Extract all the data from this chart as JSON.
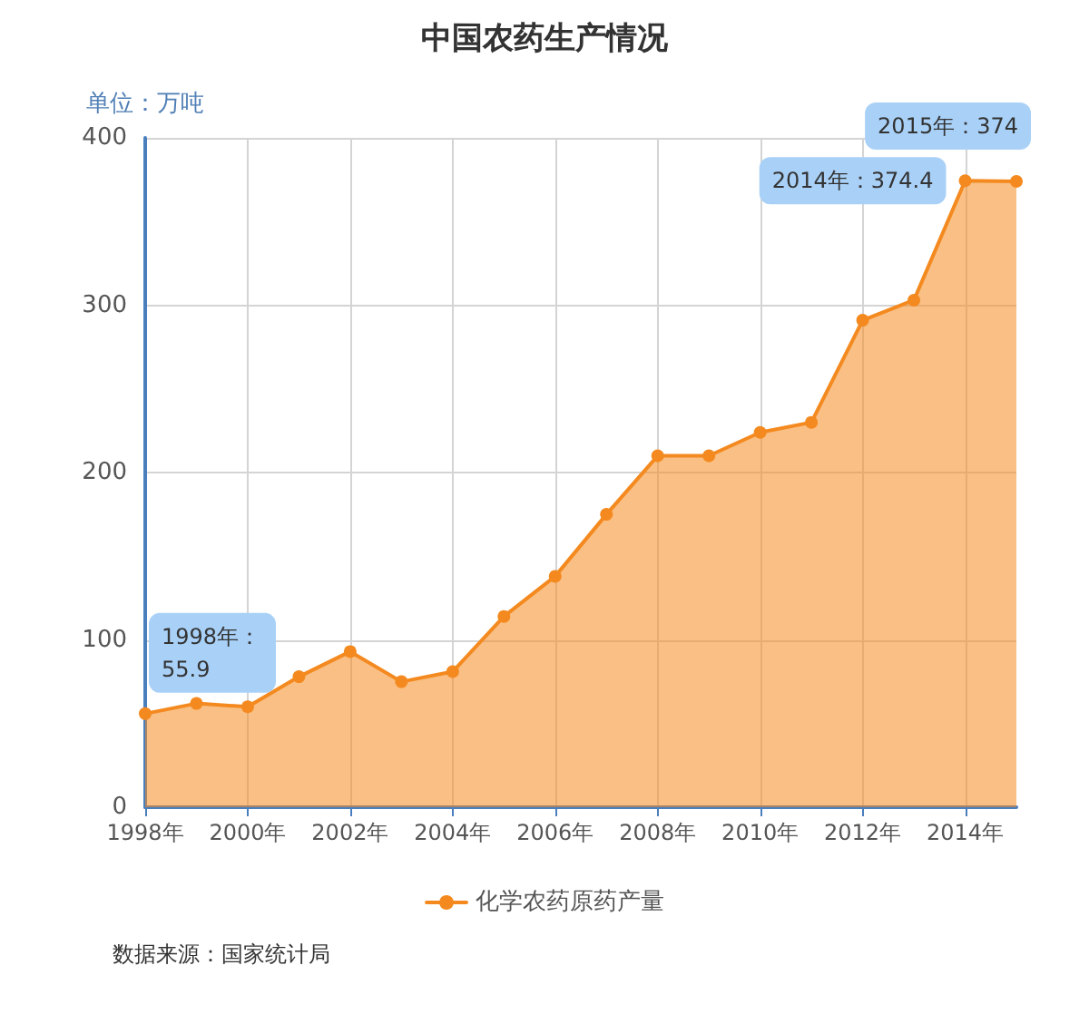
{
  "chart_data": {
    "type": "area",
    "title": "中国农药生产情况",
    "ylabel": "单位：万吨",
    "categories": [
      "1998年",
      null,
      "2000年",
      null,
      "2002年",
      null,
      "2004年",
      null,
      "2006年",
      null,
      "2008年",
      null,
      "2010年",
      null,
      "2012年",
      null,
      "2014年",
      null
    ],
    "series": [
      {
        "name": "化学农药原药产量",
        "color": "#f48a1f",
        "values": [
          55.9,
          62,
          60,
          78,
          93,
          75,
          81,
          114,
          138,
          175,
          210,
          210,
          224,
          230,
          291,
          303,
          374.4,
          374
        ],
        "value_labels": [
          "1998年：55.9",
          null,
          null,
          null,
          null,
          null,
          null,
          null,
          null,
          null,
          null,
          null,
          null,
          null,
          null,
          null,
          "2014年：374.4",
          "2015年：374"
        ]
      }
    ],
    "ylim": [
      0,
      400
    ],
    "yticks": [
      0,
      100,
      200,
      300,
      400
    ],
    "grid": true,
    "legend": "bottom",
    "marker": "circle",
    "line_style": "solid",
    "annotations": [
      "数据来源：国家统计局"
    ]
  }
}
